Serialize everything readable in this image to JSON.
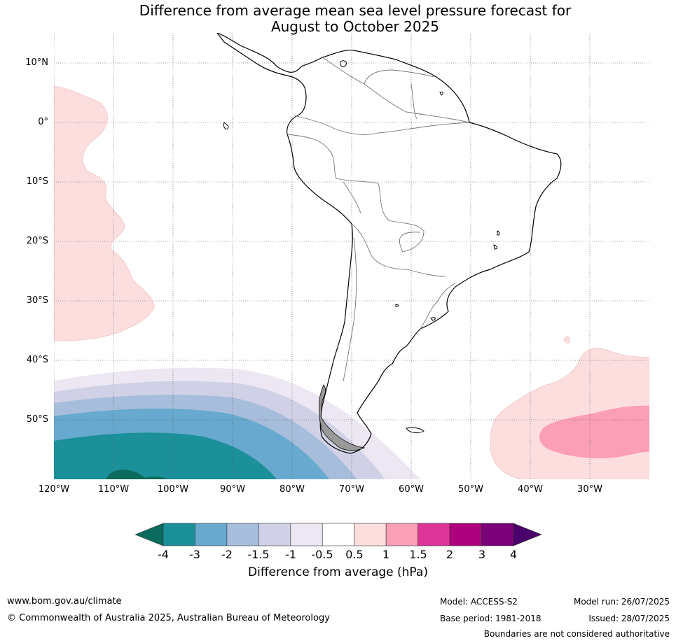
{
  "title_line1": "Difference from average mean sea level pressure forecast for",
  "title_line2": "August to October 2025",
  "map": {
    "lat_labels": [
      "10°N",
      "0°",
      "10°S",
      "20°S",
      "30°S",
      "40°S",
      "50°S"
    ],
    "lon_labels": [
      "120°W",
      "110°W",
      "100°W",
      "90°W",
      "80°W",
      "70°W",
      "60°W",
      "50°W",
      "40°W",
      "30°W"
    ],
    "lat_values": [
      10,
      0,
      -10,
      -20,
      -30,
      -40,
      -50
    ],
    "lon_values": [
      -120,
      -110,
      -100,
      -90,
      -80,
      -70,
      -60,
      -50,
      -40,
      -30
    ],
    "extent": {
      "lon_min": -120,
      "lon_max": -20,
      "lat_min": -60,
      "lat_max": 15
    },
    "colors": {
      "lt_-4": "#0b6b5c",
      "-4_-3": "#1c9099",
      "-3_-2": "#67a9cf",
      "-2_-1.5": "#a6bddb",
      "-1.5_-1": "#d0d1e6",
      "-1_-0.5": "#ece7f2",
      "-0.5_0.5": "#ffffff",
      "0.5_1": "#fcdede",
      "1_1.5": "#fa9fb5",
      "1.5_2": "#dd3497",
      "2_3": "#ae017e",
      "3_4": "#7a0177",
      "gt_4": "#49006a"
    }
  },
  "colorbar": {
    "ticks": [
      "-4",
      "-3",
      "-2",
      "-1.5",
      "-1",
      "-0.5",
      "0.5",
      "1",
      "1.5",
      "2",
      "3",
      "4"
    ],
    "segment_colors": [
      "#1c9099",
      "#67a9cf",
      "#a6bddb",
      "#d0d1e6",
      "#ece7f2",
      "#ffffff",
      "#fcdede",
      "#fa9fb5",
      "#dd3497",
      "#ae017e",
      "#7a0177"
    ],
    "low_color": "#0b6b5c",
    "high_color": "#49006a",
    "label": "Difference from average (hPa)"
  },
  "footer": {
    "website": "www.bom.gov.au/climate",
    "copyright": "© Commonwealth of Australia 2025, Australian Bureau of Meteorology",
    "model": "Model: ACCESS-S2",
    "base_period": "Base period: 1981-2018",
    "model_run": "Model run: 26/07/2025",
    "issued": "Issued: 28/07/2025",
    "disclaimer": "Boundaries are not considered authoritative"
  }
}
